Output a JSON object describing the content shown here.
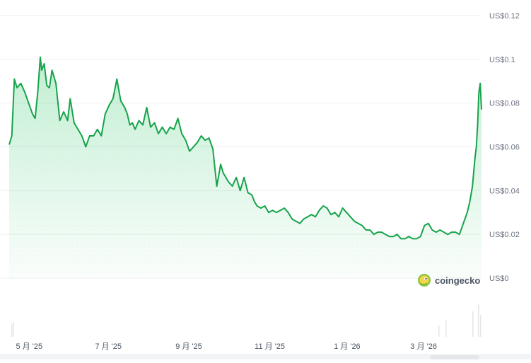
{
  "chart_data": {
    "type": "area",
    "xlabel": "",
    "ylabel": "",
    "ylim": [
      0,
      0.12
    ],
    "y_ticks": [
      "US$0",
      "US$0.02",
      "US$0.04",
      "US$0.06",
      "US$0.08",
      "US$0.1",
      "US$0.12"
    ],
    "y_tick_values": [
      0,
      0.02,
      0.04,
      0.06,
      0.08,
      0.1,
      0.12
    ],
    "x_ticks": [
      "5 月 '25",
      "7 月 '25",
      "9 月 '25",
      "11 月 '25",
      "1 月 '26",
      "3 月 '26"
    ],
    "x_tick_dates": [
      "2025-05-01",
      "2025-07-01",
      "2025-09-01",
      "2025-11-01",
      "2026-01-01",
      "2026-03-01"
    ],
    "xlim": [
      "2025-04-28",
      "2026-04-27"
    ],
    "grid": true,
    "line_color": "#16a34a",
    "series": [
      {
        "x": [
          "2025-04-28",
          "2025-04-30",
          "2025-05-02",
          "2025-05-04",
          "2025-05-07",
          "2025-05-10",
          "2025-05-13",
          "2025-05-16",
          "2025-05-18",
          "2025-05-20",
          "2025-05-22",
          "2025-05-23",
          "2025-05-25",
          "2025-05-27",
          "2025-05-29",
          "2025-05-31",
          "2025-06-03",
          "2025-06-06",
          "2025-06-09",
          "2025-06-12",
          "2025-06-14",
          "2025-06-17",
          "2025-06-20",
          "2025-06-23",
          "2025-06-26",
          "2025-06-29",
          "2025-07-02",
          "2025-07-05",
          "2025-07-08",
          "2025-07-11",
          "2025-07-14",
          "2025-07-17",
          "2025-07-20",
          "2025-07-23",
          "2025-07-26",
          "2025-07-28",
          "2025-07-30",
          "2025-08-01",
          "2025-08-03",
          "2025-08-06",
          "2025-08-09",
          "2025-08-12",
          "2025-08-15",
          "2025-08-18",
          "2025-08-21",
          "2025-08-24",
          "2025-08-27",
          "2025-08-30",
          "2025-09-02",
          "2025-09-05",
          "2025-09-08",
          "2025-09-11",
          "2025-09-14",
          "2025-09-17",
          "2025-09-20",
          "2025-09-23",
          "2025-09-26",
          "2025-09-29",
          "2025-10-02",
          "2025-10-05",
          "2025-10-08",
          "2025-10-10",
          "2025-10-12",
          "2025-10-14",
          "2025-10-17",
          "2025-10-20",
          "2025-10-23",
          "2025-10-26",
          "2025-10-29",
          "2025-11-01",
          "2025-11-03",
          "2025-11-05",
          "2025-11-08",
          "2025-11-11",
          "2025-11-14",
          "2025-11-17",
          "2025-11-20",
          "2025-11-23",
          "2025-11-26",
          "2025-11-29",
          "2025-12-02",
          "2025-12-05",
          "2025-12-08",
          "2025-12-11",
          "2025-12-14",
          "2025-12-17",
          "2025-12-20",
          "2025-12-23",
          "2025-12-26",
          "2025-12-29",
          "2026-01-01",
          "2026-01-04",
          "2026-01-07",
          "2026-01-10",
          "2026-01-13",
          "2026-01-16",
          "2026-01-19",
          "2026-01-22",
          "2026-01-25",
          "2026-01-28",
          "2026-01-31",
          "2026-02-03",
          "2026-02-06",
          "2026-02-09",
          "2026-02-12",
          "2026-02-15",
          "2026-02-18",
          "2026-02-21",
          "2026-02-24",
          "2026-02-27",
          "2026-03-02",
          "2026-03-05",
          "2026-03-08",
          "2026-03-11",
          "2026-03-14",
          "2026-03-17",
          "2026-03-20",
          "2026-03-23",
          "2026-03-26",
          "2026-03-29",
          "2026-04-01",
          "2026-04-04",
          "2026-04-07",
          "2026-04-10",
          "2026-04-13",
          "2026-04-16",
          "2026-04-18",
          "2026-04-20",
          "2026-04-22",
          "2026-04-23",
          "2026-04-24",
          "2026-04-25",
          "2026-04-26",
          "2026-04-27"
        ],
        "values": [
          0.061,
          0.065,
          0.091,
          0.087,
          0.089,
          0.085,
          0.08,
          0.075,
          0.073,
          0.085,
          0.101,
          0.095,
          0.098,
          0.088,
          0.087,
          0.095,
          0.089,
          0.072,
          0.076,
          0.072,
          0.082,
          0.071,
          0.068,
          0.065,
          0.06,
          0.065,
          0.065,
          0.068,
          0.065,
          0.075,
          0.079,
          0.082,
          0.091,
          0.081,
          0.078,
          0.075,
          0.07,
          0.071,
          0.068,
          0.072,
          0.07,
          0.078,
          0.069,
          0.071,
          0.066,
          0.069,
          0.066,
          0.069,
          0.068,
          0.073,
          0.066,
          0.063,
          0.058,
          0.06,
          0.062,
          0.065,
          0.063,
          0.064,
          0.059,
          0.042,
          0.052,
          0.048,
          0.046,
          0.044,
          0.042,
          0.046,
          0.04,
          0.046,
          0.039,
          0.038,
          0.035,
          0.033,
          0.032,
          0.033,
          0.03,
          0.031,
          0.03,
          0.031,
          0.032,
          0.03,
          0.027,
          0.026,
          0.025,
          0.027,
          0.028,
          0.029,
          0.028,
          0.031,
          0.033,
          0.032,
          0.029,
          0.03,
          0.028,
          0.032,
          0.03,
          0.028,
          0.026,
          0.025,
          0.024,
          0.022,
          0.022,
          0.02,
          0.021,
          0.021,
          0.02,
          0.019,
          0.019,
          0.02,
          0.018,
          0.018,
          0.019,
          0.018,
          0.018,
          0.019,
          0.024,
          0.025,
          0.022,
          0.021,
          0.022,
          0.021,
          0.02,
          0.021,
          0.021,
          0.02,
          0.025,
          0.03,
          0.035,
          0.042,
          0.055,
          0.06,
          0.07,
          0.085,
          0.089,
          0.077
        ]
      }
    ]
  },
  "watermark": {
    "text": "coingecko",
    "icon": "gecko-logo-icon"
  }
}
